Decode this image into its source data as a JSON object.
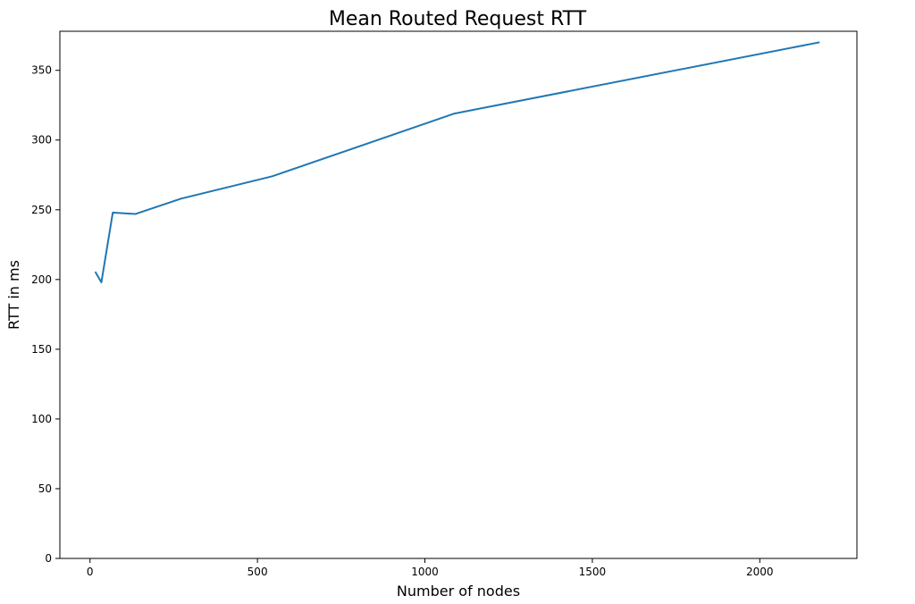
{
  "chart_data": {
    "type": "line",
    "title": "Mean Routed Request RTT",
    "xlabel": "Number of nodes",
    "ylabel": "RTT in ms",
    "xlim": [
      -90,
      2290
    ],
    "ylim": [
      0,
      378
    ],
    "xticks": [
      0,
      500,
      1000,
      1500,
      2000
    ],
    "yticks": [
      0,
      50,
      100,
      150,
      200,
      250,
      300,
      350
    ],
    "grid": false,
    "legend": "none",
    "series": [
      {
        "color": "#1f77b4",
        "x": [
          17,
          34,
          68,
          136,
          272,
          544,
          1088,
          2176
        ],
        "y": [
          205,
          198,
          248,
          247,
          258,
          274,
          319,
          370
        ]
      }
    ]
  }
}
